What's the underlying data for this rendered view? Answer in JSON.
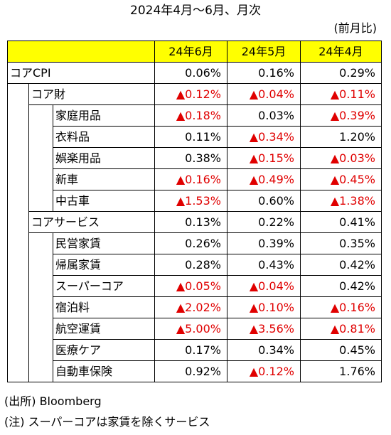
{
  "title": "2024年4月〜6月、月次",
  "unit": "(前月比)",
  "columns": [
    "24年6月",
    "24年5月",
    "24年4月"
  ],
  "rows": [
    {
      "label": "コアCPI",
      "values": [
        "0.06%",
        "0.16%",
        "0.29%"
      ],
      "negative": [
        false,
        false,
        false
      ]
    },
    {
      "label": "コア財",
      "values": [
        "▲0.12%",
        "▲0.04%",
        "▲0.11%"
      ],
      "negative": [
        true,
        true,
        true
      ]
    },
    {
      "label": "家庭用品",
      "values": [
        "▲0.18%",
        "0.03%",
        "▲0.39%"
      ],
      "negative": [
        true,
        false,
        true
      ]
    },
    {
      "label": "衣料品",
      "values": [
        "0.11%",
        "▲0.34%",
        "1.20%"
      ],
      "negative": [
        false,
        true,
        false
      ]
    },
    {
      "label": "娯楽用品",
      "values": [
        "0.38%",
        "▲0.15%",
        "▲0.03%"
      ],
      "negative": [
        false,
        true,
        true
      ]
    },
    {
      "label": "新車",
      "values": [
        "▲0.16%",
        "▲0.49%",
        "▲0.45%"
      ],
      "negative": [
        true,
        true,
        true
      ]
    },
    {
      "label": "中古車",
      "values": [
        "▲1.53%",
        "0.60%",
        "▲1.38%"
      ],
      "negative": [
        true,
        false,
        true
      ]
    },
    {
      "label": "コアサービス",
      "values": [
        "0.13%",
        "0.22%",
        "0.41%"
      ],
      "negative": [
        false,
        false,
        false
      ]
    },
    {
      "label": "民営家賃",
      "values": [
        "0.26%",
        "0.39%",
        "0.35%"
      ],
      "negative": [
        false,
        false,
        false
      ]
    },
    {
      "label": "帰属家賃",
      "values": [
        "0.28%",
        "0.43%",
        "0.42%"
      ],
      "negative": [
        false,
        false,
        false
      ]
    },
    {
      "label": "スーパーコア",
      "values": [
        "▲0.05%",
        "▲0.04%",
        "0.42%"
      ],
      "negative": [
        true,
        true,
        false
      ]
    },
    {
      "label": "宿泊料",
      "values": [
        "▲2.02%",
        "▲0.10%",
        "▲0.16%"
      ],
      "negative": [
        true,
        true,
        true
      ]
    },
    {
      "label": "航空運賃",
      "values": [
        "▲5.00%",
        "▲3.56%",
        "▲0.81%"
      ],
      "negative": [
        true,
        true,
        true
      ]
    },
    {
      "label": "医療ケア",
      "values": [
        "0.17%",
        "0.34%",
        "0.45%"
      ],
      "negative": [
        false,
        false,
        false
      ]
    },
    {
      "label": "自動車保険",
      "values": [
        "0.92%",
        "▲0.12%",
        "1.76%"
      ],
      "negative": [
        false,
        true,
        false
      ]
    }
  ],
  "notes": {
    "source": "(出所) Bloomberg",
    "note": "(注) スーパーコアは家賃を除くサービス"
  },
  "colors": {
    "header_bg": "#ffff00",
    "negative": "#e00000"
  }
}
